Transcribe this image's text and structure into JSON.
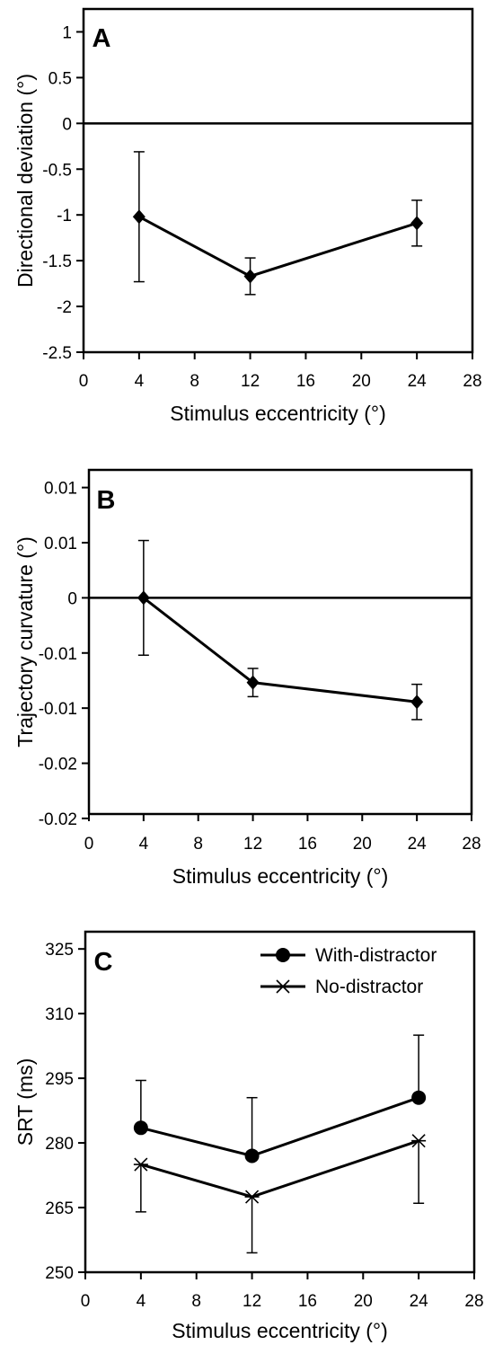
{
  "chart_data": [
    {
      "type": "line",
      "panel_label": "A",
      "xlabel": "Stimulus eccentricity (°)",
      "ylabel": "Directional deviation (°)",
      "xlim": [
        0,
        28
      ],
      "ylim": [
        -2.5,
        1.25
      ],
      "x_ticks": [
        "0",
        "4",
        "8",
        "12",
        "16",
        "20",
        "24",
        "28"
      ],
      "y_ticks": [
        "1",
        "0.5",
        "0",
        "-0.5",
        "-1",
        "-1.5",
        "-2",
        "-2.5"
      ],
      "y_tick_values": [
        1,
        0.5,
        0,
        -0.5,
        -1,
        -1.5,
        -2,
        -2.5
      ],
      "zero_line": true,
      "grid": false,
      "series": [
        {
          "marker": "diamond",
          "x": [
            4,
            12,
            24
          ],
          "y": [
            -1.02,
            -1.67,
            -1.09
          ],
          "err_upper": [
            -0.31,
            -1.47,
            -0.84
          ],
          "err_lower": [
            -1.73,
            -1.87,
            -1.34
          ]
        }
      ]
    },
    {
      "type": "line",
      "panel_label": "B",
      "xlabel": "Stimulus eccentricity (°)",
      "ylabel": "Trajectory curvature (°)",
      "xlim": [
        0,
        28
      ],
      "ylim": [
        -0.0245,
        0.0145
      ],
      "x_ticks": [
        "0",
        "4",
        "8",
        "12",
        "16",
        "20",
        "24",
        "28"
      ],
      "y_ticks": [
        "0.01",
        "0.01",
        "0",
        "-0.01",
        "-0.01",
        "-0.02",
        "-0.02"
      ],
      "y_tick_values": [
        0.0125,
        0.00625,
        0,
        -0.00625,
        -0.0125,
        -0.01875,
        -0.025
      ],
      "zero_line": true,
      "grid": false,
      "series": [
        {
          "marker": "diamond",
          "x": [
            4,
            12,
            24
          ],
          "y": [
            0.0,
            -0.0096,
            -0.0118
          ],
          "err_upper": [
            0.0065,
            -0.008,
            -0.0098
          ],
          "err_lower": [
            -0.0065,
            -0.0112,
            -0.0138
          ]
        }
      ]
    },
    {
      "type": "line",
      "panel_label": "C",
      "xlabel": "Stimulus eccentricity (°)",
      "ylabel": "SRT (ms)",
      "xlim": [
        0,
        28
      ],
      "ylim": [
        250,
        329
      ],
      "x_ticks": [
        "0",
        "4",
        "8",
        "12",
        "16",
        "20",
        "24",
        "28"
      ],
      "y_ticks": [
        "325",
        "310",
        "295",
        "280",
        "265",
        "250"
      ],
      "y_tick_values": [
        325,
        310,
        295,
        280,
        265,
        250
      ],
      "zero_line": false,
      "grid": false,
      "legend_position": "top-right",
      "series": [
        {
          "name": "With-distractor",
          "marker": "circle",
          "x": [
            4,
            12,
            24
          ],
          "y": [
            283.5,
            277.0,
            290.5
          ],
          "err_upper": [
            294.5,
            290.5,
            305.0
          ],
          "err_lower": [
            283.5,
            277.0,
            290.5
          ]
        },
        {
          "name": "No-distractor",
          "marker": "star",
          "x": [
            4,
            12,
            24
          ],
          "y": [
            275.0,
            267.5,
            280.5
          ],
          "err_upper": [
            275.0,
            267.5,
            280.5
          ],
          "err_lower": [
            264.0,
            254.5,
            266.0
          ]
        }
      ]
    }
  ]
}
